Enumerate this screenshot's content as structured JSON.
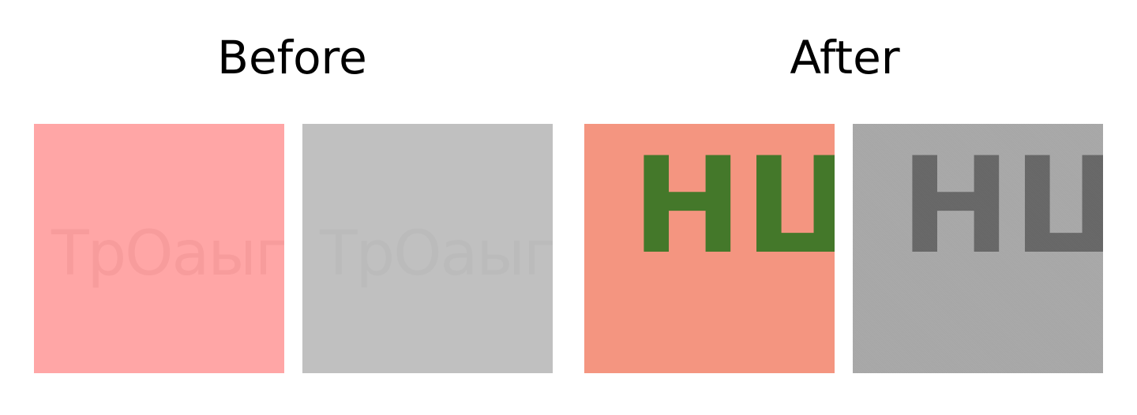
{
  "headings": {
    "before": "Before",
    "after": "After"
  },
  "panels": {
    "before_color": {
      "background": "#FFA6A6",
      "text": "ТрОаыг",
      "text_color": "#F79C9C"
    },
    "before_gray": {
      "background": "#C0C0C0",
      "text": "ТрОаыг",
      "text_color": "#BBBBBB"
    },
    "after_color": {
      "background": "#F49580",
      "text": "НШ",
      "text_color": "#44782A"
    },
    "after_gray": {
      "background": "#A9A9A9",
      "text": "НШ",
      "text_color": "#686868"
    }
  }
}
